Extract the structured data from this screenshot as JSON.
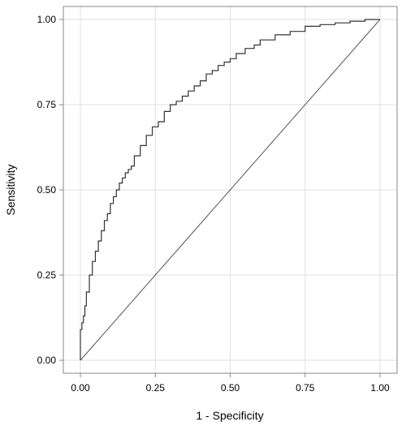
{
  "chart_data": {
    "type": "line",
    "title": "",
    "xlabel": "1 - Specificity",
    "ylabel": "Sensitivity",
    "xlim": [
      0,
      1
    ],
    "ylim": [
      0,
      1
    ],
    "x_ticks": [
      0,
      0.25,
      0.5,
      0.75,
      1
    ],
    "y_ticks": [
      0,
      0.25,
      0.5,
      0.75,
      1
    ],
    "x_tick_labels": [
      "0.00",
      "0.25",
      "0.50",
      "0.75",
      "1.00"
    ],
    "y_tick_labels": [
      "0.00",
      "0.25",
      "0.50",
      "0.75",
      "1.00"
    ],
    "grid": true,
    "legend": "none",
    "colors": {
      "curve": "#333333",
      "reference": "#555555",
      "grid": "#e0e0e0",
      "frame": "#888888"
    },
    "series": [
      {
        "x": [
          0.0,
          0.0,
          0.005,
          0.01,
          0.015,
          0.02,
          0.03,
          0.04,
          0.05,
          0.06,
          0.07,
          0.08,
          0.09,
          0.1,
          0.11,
          0.12,
          0.13,
          0.14,
          0.15,
          0.16,
          0.17,
          0.18,
          0.2,
          0.22,
          0.24,
          0.26,
          0.28,
          0.3,
          0.32,
          0.34,
          0.36,
          0.38,
          0.4,
          0.42,
          0.44,
          0.46,
          0.48,
          0.5,
          0.52,
          0.55,
          0.58,
          0.6,
          0.65,
          0.7,
          0.75,
          0.8,
          0.85,
          0.9,
          0.95,
          1.0
        ],
        "y": [
          0.0,
          0.07,
          0.09,
          0.11,
          0.13,
          0.16,
          0.2,
          0.25,
          0.29,
          0.32,
          0.35,
          0.38,
          0.41,
          0.43,
          0.46,
          0.48,
          0.5,
          0.52,
          0.535,
          0.55,
          0.56,
          0.57,
          0.6,
          0.63,
          0.66,
          0.685,
          0.7,
          0.73,
          0.75,
          0.76,
          0.775,
          0.79,
          0.805,
          0.82,
          0.84,
          0.85,
          0.865,
          0.875,
          0.885,
          0.9,
          0.915,
          0.925,
          0.94,
          0.955,
          0.965,
          0.98,
          0.985,
          0.99,
          0.995,
          1.0
        ]
      },
      {
        "x": [
          0,
          1
        ],
        "y": [
          0,
          1
        ]
      }
    ]
  }
}
